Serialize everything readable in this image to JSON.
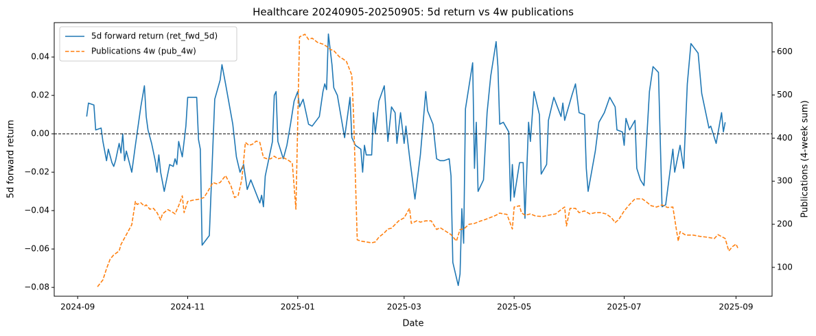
{
  "chart_data": {
    "type": "line",
    "title": "Healthcare 20240905-20250905: 5d return vs 4w publications",
    "x_label": "Date",
    "y_label": "5d forward return",
    "y2_label": "Publications (4-week sum)",
    "xlim": [
      "2024-08-19",
      "2025-09-21"
    ],
    "xticks": [
      {
        "value": "2024-09-01",
        "label": "2024-09"
      },
      {
        "value": "2024-11-01",
        "label": "2024-11"
      },
      {
        "value": "2025-01-01",
        "label": "2025-01"
      },
      {
        "value": "2025-03-01",
        "label": "2025-03"
      },
      {
        "value": "2025-05-01",
        "label": "2025-05"
      },
      {
        "value": "2025-07-01",
        "label": "2025-07"
      },
      {
        "value": "2025-09-01",
        "label": "2025-09"
      }
    ],
    "ylim": [
      -0.0846,
      0.0579
    ],
    "yticks": [
      {
        "value": -0.08,
        "label": "−0.08"
      },
      {
        "value": -0.06,
        "label": "−0.06"
      },
      {
        "value": -0.04,
        "label": "−0.04"
      },
      {
        "value": -0.02,
        "label": "−0.02"
      },
      {
        "value": 0,
        "label": "0.00"
      },
      0.02,
      0.04
    ],
    "y2lim": [
      33,
      668
    ],
    "y2ticks": [
      100,
      200,
      300,
      400,
      500,
      600
    ],
    "hline": 0,
    "legend": "upper left",
    "series": [
      {
        "name": "5d forward return (ret_fwd_5d)",
        "color": "#1f77b4",
        "style": "solid",
        "x": [
          "2024-09-06",
          "2024-09-07",
          "2024-09-10",
          "2024-09-11",
          "2024-09-14",
          "2024-09-15",
          "2024-09-17",
          "2024-09-18",
          "2024-09-20",
          "2024-09-21",
          "2024-09-22",
          "2024-09-24",
          "2024-09-25",
          "2024-09-26",
          "2024-09-27",
          "2024-09-28",
          "2024-10-01",
          "2024-10-03",
          "2024-10-06",
          "2024-10-08",
          "2024-10-09",
          "2024-10-10",
          "2024-10-12",
          "2024-10-14",
          "2024-10-15",
          "2024-10-16",
          "2024-10-17",
          "2024-10-19",
          "2024-10-22",
          "2024-10-24",
          "2024-10-25",
          "2024-10-26",
          "2024-10-27",
          "2024-10-29",
          "2024-10-31",
          "2024-11-01",
          "2024-11-03",
          "2024-11-06",
          "2024-11-07",
          "2024-11-08",
          "2024-11-09",
          "2024-11-13",
          "2024-11-16",
          "2024-11-19",
          "2024-11-20",
          "2024-11-22",
          "2024-11-26",
          "2024-11-28",
          "2024-11-30",
          "2024-12-02",
          "2024-12-04",
          "2024-12-06",
          "2024-12-11",
          "2024-12-12",
          "2024-12-13",
          "2024-12-14",
          "2024-12-18",
          "2024-12-19",
          "2024-12-20",
          "2024-12-21",
          "2024-12-24",
          "2024-12-26",
          "2024-12-28",
          "2024-12-30",
          "2025-01-01",
          "2025-01-02",
          "2025-01-04",
          "2025-01-07",
          "2025-01-09",
          "2025-01-13",
          "2025-01-15",
          "2025-01-16",
          "2025-01-17",
          "2025-01-18",
          "2025-01-20",
          "2025-01-21",
          "2025-01-23",
          "2025-01-27",
          "2025-01-30",
          "2025-01-31",
          "2025-02-02",
          "2025-02-05",
          "2025-02-06",
          "2025-02-07",
          "2025-02-08",
          "2025-02-11",
          "2025-02-12",
          "2025-02-13",
          "2025-02-15",
          "2025-02-18",
          "2025-02-20",
          "2025-02-22",
          "2025-02-24",
          "2025-02-25",
          "2025-02-27",
          "2025-03-01",
          "2025-03-02",
          "2025-03-04",
          "2025-03-07",
          "2025-03-10",
          "2025-03-13",
          "2025-03-14",
          "2025-03-17",
          "2025-03-19",
          "2025-03-21",
          "2025-03-23",
          "2025-03-26",
          "2025-03-27",
          "2025-03-28",
          "2025-03-31",
          "2025-04-01",
          "2025-04-02",
          "2025-04-03",
          "2025-04-04",
          "2025-04-08",
          "2025-04-09",
          "2025-04-10",
          "2025-04-11",
          "2025-04-14",
          "2025-04-16",
          "2025-04-18",
          "2025-04-21",
          "2025-04-22",
          "2025-04-23",
          "2025-04-25",
          "2025-04-28",
          "2025-04-29",
          "2025-04-30",
          "2025-05-01",
          "2025-05-04",
          "2025-05-06",
          "2025-05-07",
          "2025-05-09",
          "2025-05-10",
          "2025-05-12",
          "2025-05-15",
          "2025-05-16",
          "2025-05-19",
          "2025-05-20",
          "2025-05-23",
          "2025-05-25",
          "2025-05-27",
          "2025-05-28",
          "2025-05-29",
          "2025-06-02",
          "2025-06-04",
          "2025-06-06",
          "2025-06-09",
          "2025-06-10",
          "2025-06-11",
          "2025-06-15",
          "2025-06-17",
          "2025-06-20",
          "2025-06-23",
          "2025-06-26",
          "2025-06-27",
          "2025-06-30",
          "2025-07-01",
          "2025-07-02",
          "2025-07-04",
          "2025-07-07",
          "2025-07-08",
          "2025-07-10",
          "2025-07-12",
          "2025-07-15",
          "2025-07-17",
          "2025-07-20",
          "2025-07-22",
          "2025-07-24",
          "2025-07-28",
          "2025-07-29",
          "2025-08-01",
          "2025-08-03",
          "2025-08-05",
          "2025-08-07",
          "2025-08-11",
          "2025-08-13",
          "2025-08-17",
          "2025-08-18",
          "2025-08-21",
          "2025-08-24",
          "2025-08-25",
          "2025-08-26"
        ],
        "values": [
          0.009,
          0.016,
          0.015,
          0.002,
          0.003,
          -0.004,
          -0.014,
          -0.008,
          -0.015,
          -0.017,
          -0.014,
          -0.005,
          -0.01,
          0.0,
          -0.014,
          -0.009,
          -0.02,
          -0.006,
          0.014,
          0.025,
          0.009,
          0.002,
          -0.005,
          -0.014,
          -0.02,
          -0.011,
          -0.02,
          -0.03,
          -0.016,
          -0.017,
          -0.013,
          -0.016,
          -0.004,
          -0.012,
          0.004,
          0.019,
          0.019,
          0.019,
          -0.003,
          -0.008,
          -0.058,
          -0.053,
          0.018,
          0.028,
          0.036,
          0.026,
          0.005,
          -0.012,
          -0.02,
          -0.016,
          -0.029,
          -0.024,
          -0.036,
          -0.032,
          -0.038,
          -0.022,
          -0.004,
          0.02,
          0.022,
          -0.004,
          -0.013,
          -0.006,
          0.005,
          0.017,
          0.022,
          0.014,
          0.018,
          0.005,
          0.004,
          0.009,
          0.022,
          0.026,
          0.023,
          0.052,
          0.036,
          0.024,
          0.02,
          -0.002,
          0.019,
          -0.002,
          -0.006,
          -0.008,
          -0.02,
          -0.006,
          -0.011,
          -0.011,
          0.011,
          0.0,
          0.017,
          0.025,
          -0.004,
          0.014,
          0.011,
          -0.005,
          0.011,
          -0.005,
          0.004,
          -0.012,
          -0.034,
          -0.011,
          0.022,
          0.012,
          0.005,
          -0.013,
          -0.014,
          -0.014,
          -0.013,
          -0.022,
          -0.067,
          -0.079,
          -0.073,
          -0.039,
          -0.057,
          0.013,
          0.037,
          -0.018,
          0.006,
          -0.03,
          -0.024,
          0.011,
          0.03,
          0.048,
          0.035,
          0.005,
          0.006,
          0.001,
          -0.035,
          -0.016,
          -0.033,
          -0.015,
          -0.015,
          -0.044,
          0.006,
          -0.004,
          0.022,
          0.01,
          -0.021,
          -0.016,
          0.007,
          0.019,
          0.014,
          0.009,
          0.016,
          0.007,
          0.02,
          0.026,
          0.011,
          0.01,
          -0.018,
          -0.03,
          -0.009,
          0.006,
          0.011,
          0.019,
          0.014,
          0.002,
          0.001,
          -0.006,
          0.008,
          0.002,
          0.007,
          -0.018,
          -0.024,
          -0.027,
          0.022,
          0.035,
          0.032,
          -0.038,
          -0.037,
          -0.008,
          -0.02,
          -0.006,
          -0.018,
          0.026,
          0.047,
          0.042,
          0.021,
          0.003,
          0.004,
          -0.005,
          0.011,
          0.001,
          0.006
        ]
      },
      {
        "name": "Publications 4w (pub_4w)",
        "color": "#ff7f0e",
        "style": "dashed",
        "axis": "y2",
        "x": [
          "2024-09-12",
          "2024-09-15",
          "2024-09-17",
          "2024-09-19",
          "2024-09-21",
          "2024-09-24",
          "2024-09-25",
          "2024-09-28",
          "2024-10-01",
          "2024-10-03",
          "2024-10-04",
          "2024-10-06",
          "2024-10-08",
          "2024-10-09",
          "2024-10-11",
          "2024-10-13",
          "2024-10-15",
          "2024-10-17",
          "2024-10-18",
          "2024-10-21",
          "2024-10-24",
          "2024-10-25",
          "2024-10-27",
          "2024-10-29",
          "2024-10-30",
          "2024-11-01",
          "2024-11-04",
          "2024-11-07",
          "2024-11-10",
          "2024-11-12",
          "2024-11-15",
          "2024-11-17",
          "2024-11-19",
          "2024-11-22",
          "2024-11-25",
          "2024-11-27",
          "2024-11-29",
          "2024-12-01",
          "2024-12-03",
          "2024-12-05",
          "2024-12-07",
          "2024-12-09",
          "2024-12-11",
          "2024-12-13",
          "2024-12-15",
          "2024-12-17",
          "2024-12-19",
          "2024-12-21",
          "2024-12-24",
          "2024-12-27",
          "2024-12-29",
          "2024-12-31",
          "2025-01-02",
          "2025-01-05",
          "2025-01-07",
          "2025-01-09",
          "2025-01-12",
          "2025-01-15",
          "2025-01-17",
          "2025-01-19",
          "2025-01-21",
          "2025-01-24",
          "2025-01-26",
          "2025-01-28",
          "2025-01-31",
          "2025-02-01",
          "2025-02-03",
          "2025-02-05",
          "2025-02-08",
          "2025-02-11",
          "2025-02-13",
          "2025-02-15",
          "2025-02-18",
          "2025-02-20",
          "2025-02-22",
          "2025-02-26",
          "2025-03-01",
          "2025-03-04",
          "2025-03-05",
          "2025-03-08",
          "2025-03-10",
          "2025-03-13",
          "2025-03-16",
          "2025-03-19",
          "2025-03-21",
          "2025-03-24",
          "2025-03-27",
          "2025-03-30",
          "2025-04-01",
          "2025-04-03",
          "2025-04-06",
          "2025-04-09",
          "2025-04-12",
          "2025-04-15",
          "2025-04-18",
          "2025-04-21",
          "2025-04-23",
          "2025-04-25",
          "2025-04-27",
          "2025-04-30",
          "2025-05-01",
          "2025-05-04",
          "2025-05-05",
          "2025-05-07",
          "2025-05-10",
          "2025-05-13",
          "2025-05-17",
          "2025-05-20",
          "2025-05-24",
          "2025-05-27",
          "2025-05-29",
          "2025-05-30",
          "2025-06-01",
          "2025-06-04",
          "2025-06-06",
          "2025-06-09",
          "2025-06-12",
          "2025-06-15",
          "2025-06-18",
          "2025-06-21",
          "2025-06-24",
          "2025-06-26",
          "2025-06-28",
          "2025-07-01",
          "2025-07-04",
          "2025-07-07",
          "2025-07-11",
          "2025-07-13",
          "2025-07-16",
          "2025-07-19",
          "2025-07-22",
          "2025-07-25",
          "2025-07-28",
          "2025-07-30",
          "2025-07-31",
          "2025-08-01",
          "2025-08-04",
          "2025-08-08",
          "2025-08-12",
          "2025-08-16",
          "2025-08-20",
          "2025-08-22",
          "2025-08-26",
          "2025-08-28",
          "2025-08-30",
          "2025-09-01",
          "2025-09-02"
        ],
        "values": [
          55,
          71,
          97,
          119,
          129,
          138,
          153,
          176,
          199,
          253,
          246,
          250,
          242,
          245,
          235,
          237,
          227,
          210,
          224,
          234,
          227,
          224,
          243,
          266,
          227,
          253,
          256,
          258,
          262,
          275,
          297,
          294,
          297,
          313,
          289,
          262,
          267,
          304,
          390,
          383,
          386,
          393,
          390,
          355,
          352,
          352,
          358,
          352,
          355,
          348,
          342,
          235,
          635,
          641,
          629,
          632,
          622,
          618,
          613,
          606,
          603,
          589,
          584,
          578,
          546,
          450,
          164,
          161,
          159,
          157,
          159,
          170,
          180,
          189,
          191,
          208,
          215,
          237,
          202,
          208,
          205,
          208,
          208,
          188,
          192,
          184,
          176,
          161,
          188,
          189,
          200,
          202,
          207,
          211,
          216,
          221,
          226,
          224,
          223,
          189,
          240,
          243,
          227,
          221,
          224,
          219,
          218,
          221,
          224,
          234,
          240,
          196,
          237,
          237,
          227,
          231,
          224,
          227,
          227,
          224,
          215,
          204,
          211,
          231,
          246,
          259,
          259,
          253,
          243,
          240,
          245,
          239,
          240,
          186,
          161,
          183,
          175,
          175,
          172,
          170,
          167,
          176,
          167,
          138,
          148,
          154,
          145
        ]
      }
    ]
  }
}
